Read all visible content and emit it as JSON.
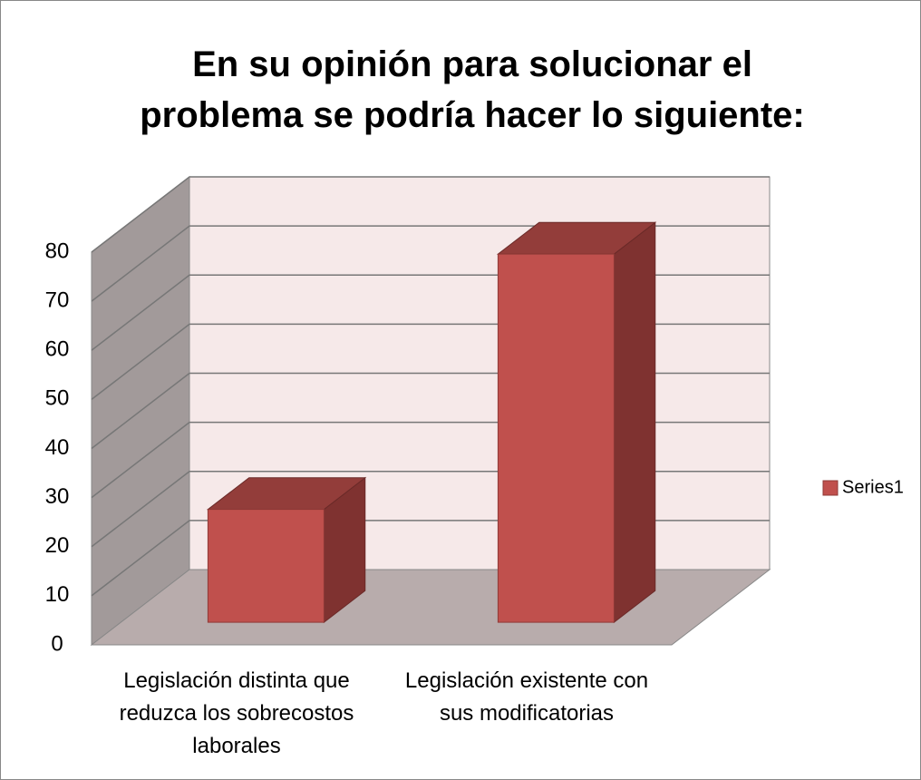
{
  "chart_data": {
    "type": "bar3d",
    "title": "En su opinión para solucionar el problema se podría hacer lo siguiente:",
    "categories": [
      "Legislación distinta que reduzca los sobrecostos laborales",
      "Legislación existente con sus modificatorias"
    ],
    "series": [
      {
        "name": "Series1",
        "color": "#c0504d",
        "values": [
          23,
          75
        ]
      }
    ],
    "ylim": [
      0,
      80
    ],
    "yticks": [
      0,
      10,
      20,
      30,
      40,
      50,
      60,
      70,
      80
    ],
    "grid": true,
    "legend": "right"
  }
}
